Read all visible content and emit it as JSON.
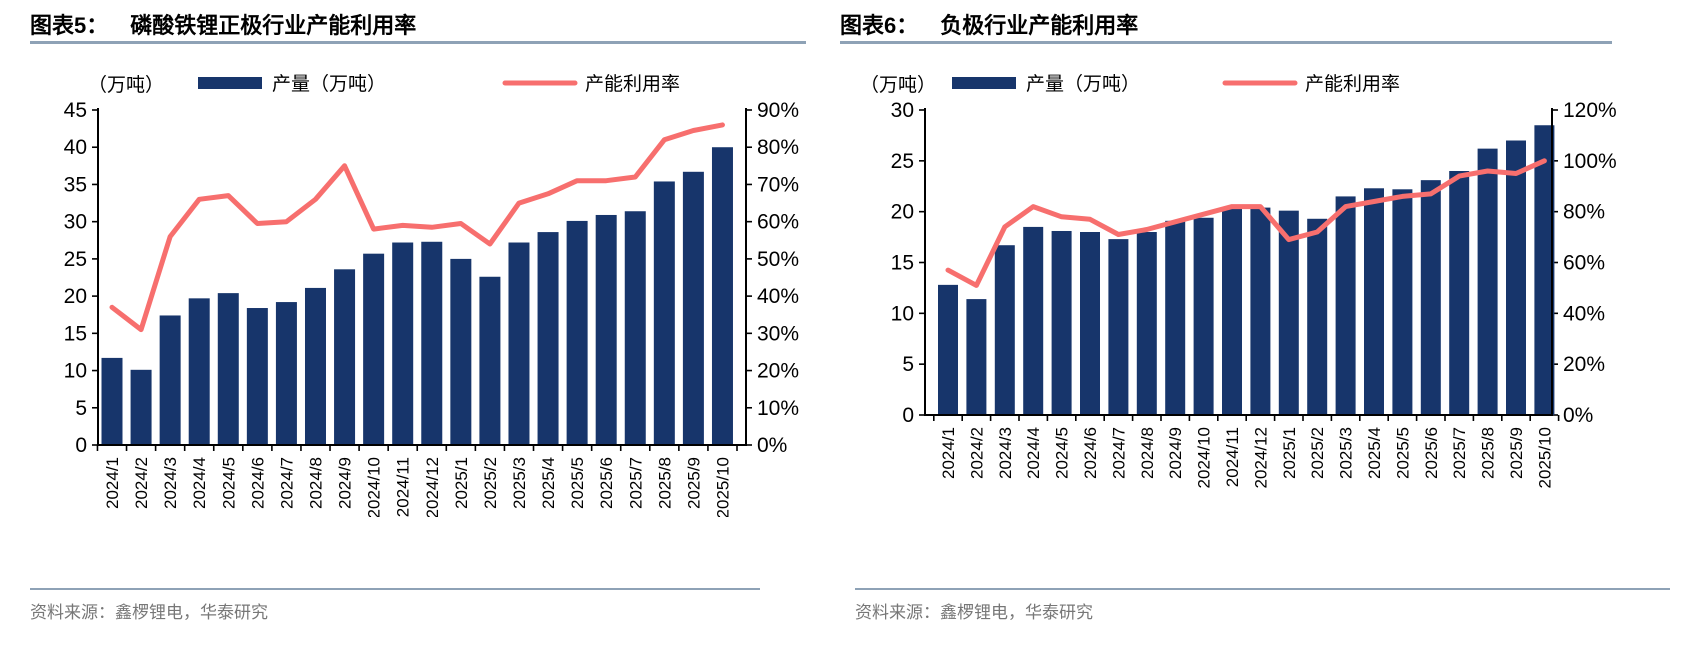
{
  "colors": {
    "bar": "#17356B",
    "line": "#F76F6E",
    "rule": "#8EA2B6",
    "source_text": "#777777",
    "axis": "#000000"
  },
  "panels": [
    {
      "figure_label": "图表5：",
      "title": "磷酸铁锂正极行业产能利用率",
      "unit_label": "（万吨）",
      "legend": {
        "bar_label": "产量（万吨）",
        "line_label": "产能利用率"
      },
      "source": "资料来源：鑫椤锂电，华泰研究"
    },
    {
      "figure_label": "图表6：",
      "title": "负极行业产能利用率",
      "unit_label": "（万吨）",
      "legend": {
        "bar_label": "产量（万吨）",
        "line_label": "产能利用率"
      },
      "source": "资料来源：鑫椤锂电，华泰研究"
    }
  ],
  "chart_data": [
    {
      "type": "bar+line",
      "title": "磷酸铁锂正极行业产能利用率",
      "categories": [
        "2024/1",
        "2024/2",
        "2024/3",
        "2024/4",
        "2024/5",
        "2024/6",
        "2024/7",
        "2024/8",
        "2024/9",
        "2024/10",
        "2024/11",
        "2024/12",
        "2025/1",
        "2025/2",
        "2025/3",
        "2025/4",
        "2025/5",
        "2025/6",
        "2025/7",
        "2025/8",
        "2025/9",
        "2025/10"
      ],
      "series": [
        {
          "name": "产量（万吨）",
          "type": "bar",
          "axis": "left",
          "values": [
            11.7,
            10.1,
            17.4,
            19.7,
            20.4,
            18.4,
            19.2,
            21.1,
            23.6,
            25.7,
            27.2,
            27.3,
            25.0,
            22.6,
            27.2,
            28.6,
            30.1,
            30.9,
            31.4,
            35.4,
            36.7,
            40.0
          ]
        },
        {
          "name": "产能利用率",
          "type": "line",
          "axis": "right",
          "unit": "%",
          "values": [
            37,
            31,
            56,
            66,
            67,
            59.5,
            60,
            66,
            75,
            58,
            59,
            58.5,
            59.5,
            54,
            65,
            67.5,
            71,
            71,
            72,
            82,
            84.5,
            86
          ]
        }
      ],
      "left_axis": {
        "label": "（万吨）",
        "min": 0,
        "max": 45,
        "step": 5
      },
      "right_axis": {
        "min": 0,
        "max": 90,
        "step": 10,
        "suffix": "%"
      },
      "legend_position": "top",
      "grid": false
    },
    {
      "type": "bar+line",
      "title": "负极行业产能利用率",
      "categories": [
        "2024/1",
        "2024/2",
        "2024/3",
        "2024/4",
        "2024/5",
        "2024/6",
        "2024/7",
        "2024/8",
        "2024/9",
        "2024/10",
        "2024/11",
        "2024/12",
        "2025/1",
        "2025/2",
        "2025/3",
        "2025/4",
        "2025/5",
        "2025/6",
        "2025/7",
        "2025/8",
        "2025/9",
        "2025/10"
      ],
      "series": [
        {
          "name": "产量（万吨）",
          "type": "bar",
          "axis": "left",
          "values": [
            12.8,
            11.4,
            16.7,
            18.5,
            18.1,
            18.0,
            17.3,
            18.0,
            19.1,
            19.4,
            20.3,
            20.4,
            20.1,
            19.3,
            21.5,
            22.3,
            22.2,
            23.1,
            24.0,
            26.2,
            27.0,
            28.5
          ]
        },
        {
          "name": "产能利用率",
          "type": "line",
          "axis": "right",
          "unit": "%",
          "values": [
            57,
            51,
            74,
            82,
            78,
            77,
            71,
            73,
            76,
            79,
            82,
            82,
            69,
            72,
            82,
            84,
            86,
            87,
            94,
            96,
            95,
            100
          ]
        }
      ],
      "left_axis": {
        "label": "（万吨）",
        "min": 0,
        "max": 30,
        "step": 5
      },
      "right_axis": {
        "min": 0,
        "max": 120,
        "step": 20,
        "suffix": "%"
      },
      "legend_position": "top",
      "grid": false
    }
  ]
}
